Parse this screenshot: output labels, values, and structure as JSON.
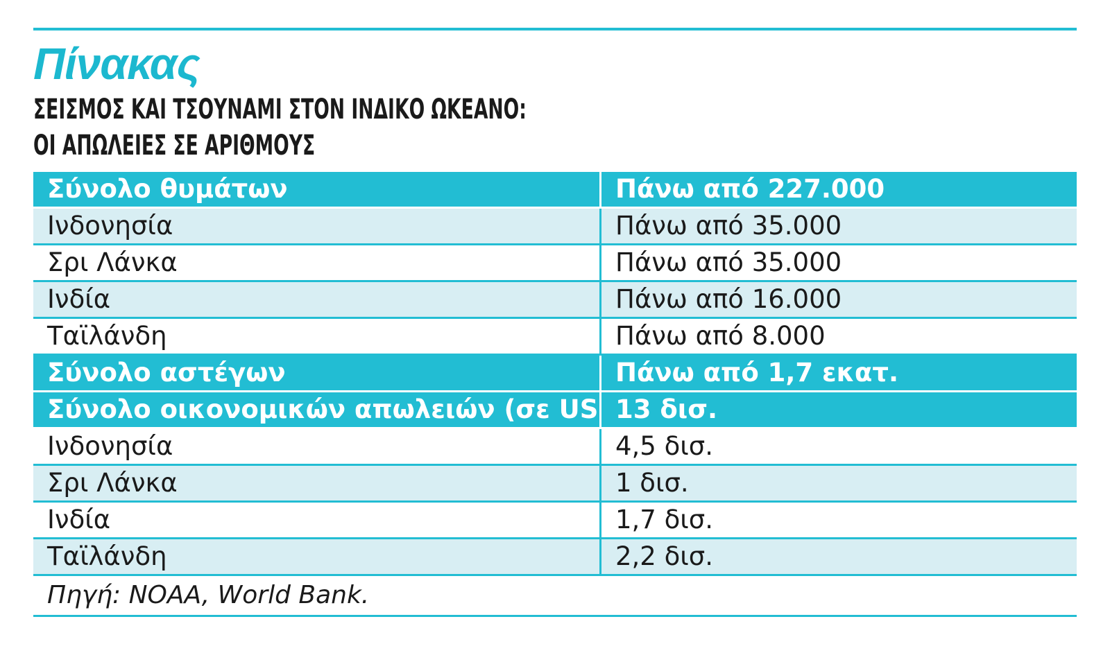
{
  "label": "Πίνακας",
  "headline": {
    "line1": "ΣΕΙΣΜΟΣ ΚΑΙ ΤΣΟΥΝΑΜΙ ΣΤΟΝ ΙΝΔΙΚΟ ΩΚΕΑΝΟ:",
    "line2": "ΟΙ ΑΠΩΛΕΙΕΣ ΣΕ ΑΡΙΘΜΟΥΣ"
  },
  "rows": [
    {
      "label": "Σύνολο θυμάτων",
      "value": "Πάνω από 227.000",
      "kind": "total"
    },
    {
      "label": "Ινδονησία",
      "value": "Πάνω από 35.000",
      "kind": "light"
    },
    {
      "label": "Σρι Λάνκα",
      "value": "Πάνω από 35.000",
      "kind": "white"
    },
    {
      "label": "Ινδία",
      "value": "Πάνω από 16.000",
      "kind": "light"
    },
    {
      "label": "Ταϊλάνδη",
      "value": "Πάνω από 8.000",
      "kind": "white"
    },
    {
      "label": "Σύνολο αστέγων",
      "value": "Πάνω από 1,7 εκατ.",
      "kind": "total"
    },
    {
      "label": "Σύνολο οικονομικών απωλειών (σε USD)",
      "value": "13 δισ.",
      "kind": "total"
    },
    {
      "label": "Ινδονησία",
      "value": "4,5 δισ.",
      "kind": "white"
    },
    {
      "label": "Σρι Λάνκα",
      "value": "1 δισ.",
      "kind": "light"
    },
    {
      "label": "Ινδία",
      "value": "1,7 δισ.",
      "kind": "white"
    },
    {
      "label": "Ταϊλάνδη",
      "value": "2,2 δισ.",
      "kind": "light"
    }
  ],
  "source": "Πηγή: NOAA, World Bank.",
  "colors": {
    "accent": "#22bdd3",
    "row_light": "#d8eef3",
    "text": "#1a1a1a"
  }
}
